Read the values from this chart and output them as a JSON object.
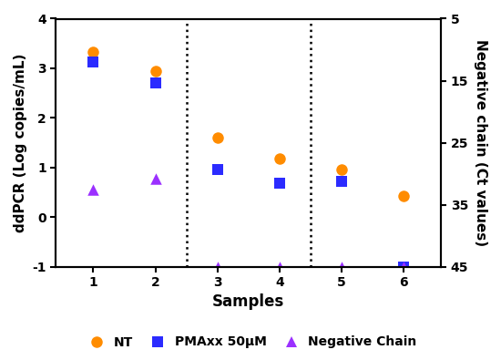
{
  "samples": [
    1,
    2,
    3,
    4,
    5,
    6
  ],
  "NT": [
    3.32,
    2.95,
    1.6,
    1.18,
    0.95,
    0.42
  ],
  "PMAxx": [
    3.13,
    2.7,
    0.95,
    0.68,
    0.72,
    -1.0
  ],
  "NegChain": [
    0.55,
    0.78,
    -1.0,
    -1.0,
    -1.0,
    -1.0
  ],
  "NT_color": "#FF8C00",
  "PMAxx_color": "#2B2BFF",
  "NegChain_color": "#9B30FF",
  "ylim": [
    -1.0,
    4.0
  ],
  "yticks_left": [
    -1.0,
    0.0,
    1.0,
    2.0,
    3.0,
    4.0
  ],
  "ylabel_left": "ddPCR (Log copies/mL)",
  "ylabel_right": "Negative chain (Ct values)",
  "xlabel": "Samples",
  "right_yticks": [
    5,
    15,
    25,
    35,
    45
  ],
  "right_ylim": [
    5,
    45
  ],
  "vline_positions": [
    2.5,
    4.5
  ],
  "legend_labels": [
    "NT",
    "PMAxx 50μM",
    "Negative Chain"
  ],
  "title": ""
}
